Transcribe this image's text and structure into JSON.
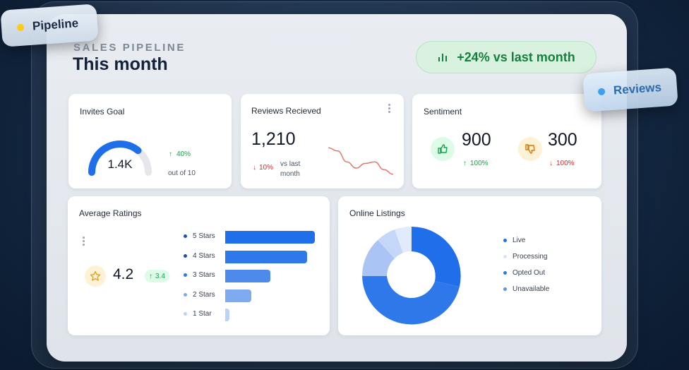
{
  "tags": {
    "pipeline": {
      "label": "Pipeline",
      "dot_color": "#facc15"
    },
    "reviews": {
      "label": "Reviews",
      "dot_color": "#3b9ff5"
    }
  },
  "header": {
    "subtitle": "SALES PIPELINE",
    "title": "This month",
    "growth_badge": {
      "icon": "bar-chart-icon",
      "text": "+24% vs last month"
    }
  },
  "cards": {
    "invites": {
      "title": "Invites Goal",
      "value": "1.4K",
      "progress": 0.72,
      "change": "40%",
      "caption": "out of 10"
    },
    "reviews": {
      "title": "Reviews Recieved",
      "value": "1,210",
      "change": "10%",
      "caption_line1": "vs last",
      "caption_line2": "month",
      "sparkline": [
        0.1,
        0.2,
        0.55,
        0.75,
        0.6,
        0.55,
        0.8,
        0.95
      ]
    },
    "sentiment": {
      "title": "Sentiment",
      "positive": {
        "value": "900",
        "change": "100%",
        "icon": "thumbs-up-icon"
      },
      "negative": {
        "value": "300",
        "change": "100%",
        "icon": "thumbs-down-icon"
      }
    },
    "ratings": {
      "title": "Average Ratings",
      "value": "4.2",
      "badge": "3.4",
      "icon": "star-icon",
      "bars": [
        {
          "label": "5 Stars",
          "fraction": 1.0
        },
        {
          "label": "4 Stars",
          "fraction": 0.91
        },
        {
          "label": "3 Stars",
          "fraction": 0.5
        },
        {
          "label": "2 Stars",
          "fraction": 0.29
        },
        {
          "label": "1 Star",
          "fraction": 0.05
        }
      ]
    },
    "listings": {
      "title": "Online Listings",
      "legend": [
        {
          "label": "Live",
          "color": "#1f6feb"
        },
        {
          "label": "Processing",
          "color": "#d6e4fb"
        },
        {
          "label": "Opted Out",
          "color": "#2f78ea"
        },
        {
          "label": "Unavailable",
          "color": "#5c93ea"
        }
      ]
    }
  },
  "colors": {
    "accent": "#1f6feb",
    "positive": "#16a34a",
    "negative": "#dc2626",
    "sparkline": "#e07a6a"
  }
}
